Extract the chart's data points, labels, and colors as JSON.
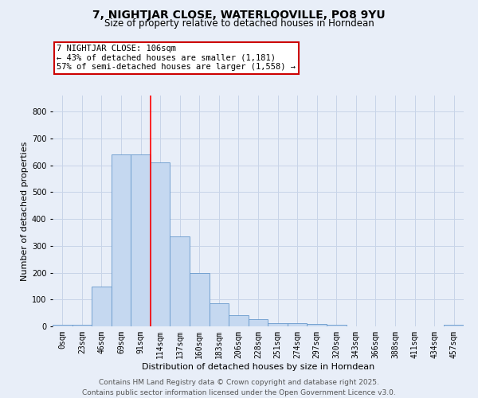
{
  "title": "7, NIGHTJAR CLOSE, WATERLOOVILLE, PO8 9YU",
  "subtitle": "Size of property relative to detached houses in Horndean",
  "xlabel": "Distribution of detached houses by size in Horndean",
  "ylabel": "Number of detached properties",
  "bin_labels": [
    "0sqm",
    "23sqm",
    "46sqm",
    "69sqm",
    "91sqm",
    "114sqm",
    "137sqm",
    "160sqm",
    "183sqm",
    "206sqm",
    "228sqm",
    "251sqm",
    "274sqm",
    "297sqm",
    "320sqm",
    "343sqm",
    "366sqm",
    "388sqm",
    "411sqm",
    "434sqm",
    "457sqm"
  ],
  "bar_heights": [
    5,
    5,
    148,
    640,
    640,
    610,
    335,
    198,
    85,
    42,
    27,
    11,
    13,
    8,
    5,
    0,
    0,
    0,
    0,
    0,
    5
  ],
  "bar_color": "#c5d8f0",
  "bar_edge_color": "#6699cc",
  "grid_color": "#c8d4e8",
  "background_color": "#e8eef8",
  "red_line_x": 4.5,
  "annotation_text": "7 NIGHTJAR CLOSE: 106sqm\n← 43% of detached houses are smaller (1,181)\n57% of semi-detached houses are larger (1,558) →",
  "annotation_box_color": "#ffffff",
  "annotation_box_edge_color": "#cc0000",
  "footer_line1": "Contains HM Land Registry data © Crown copyright and database right 2025.",
  "footer_line2": "Contains public sector information licensed under the Open Government Licence v3.0.",
  "ylim": [
    0,
    860
  ],
  "yticks": [
    0,
    100,
    200,
    300,
    400,
    500,
    600,
    700,
    800
  ],
  "title_fontsize": 10,
  "subtitle_fontsize": 8.5,
  "annotation_fontsize": 7.5,
  "footer_fontsize": 6.5,
  "ylabel_fontsize": 8,
  "xlabel_fontsize": 8,
  "tick_fontsize": 7
}
